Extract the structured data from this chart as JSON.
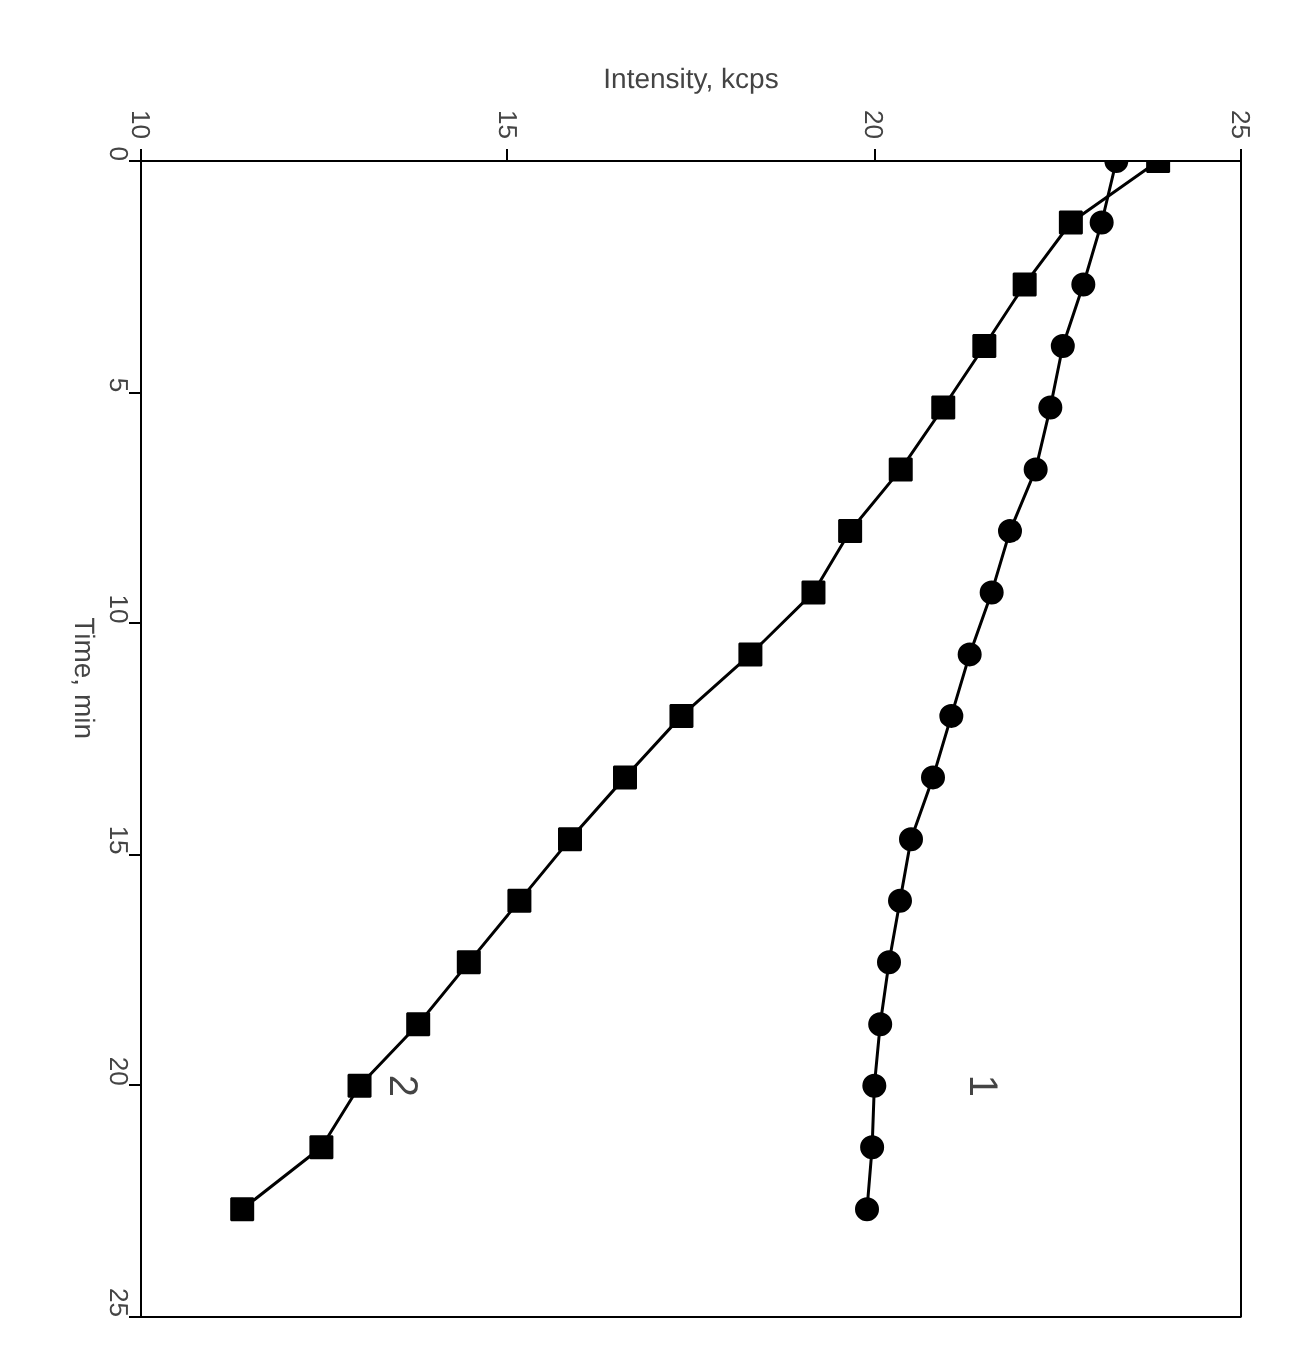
{
  "chart_data": {
    "type": "line",
    "xlabel": "Intensity, kcps",
    "ylabel": "Time, min",
    "xlim": [
      10,
      25
    ],
    "xticks": [
      10,
      15,
      20,
      25
    ],
    "ylim": [
      25,
      0
    ],
    "yticks": [
      0,
      5,
      10,
      15,
      20,
      25
    ],
    "grid": false,
    "line_style": "solid",
    "series": [
      {
        "name": "1",
        "marker": "circle",
        "color": "#000000",
        "x": [
          23.3,
          23.1,
          22.85,
          22.57,
          22.4,
          22.2,
          21.85,
          21.6,
          21.3,
          21.05,
          20.8,
          20.5,
          20.35,
          20.2,
          20.08,
          20.0,
          19.97,
          19.9
        ],
        "values": [
          0,
          1.33,
          2.67,
          4,
          5.33,
          6.67,
          8,
          9.33,
          10.67,
          12,
          13.33,
          14.67,
          16,
          17.33,
          18.67,
          20,
          21.33,
          22.67
        ]
      },
      {
        "name": "2",
        "marker": "square",
        "color": "#000000",
        "x": [
          23.87,
          22.68,
          22.05,
          21.5,
          20.94,
          20.36,
          19.67,
          19.17,
          18.31,
          17.37,
          16.6,
          15.85,
          15.16,
          14.47,
          13.78,
          12.98,
          12.46,
          11.38
        ],
        "values": [
          0,
          1.33,
          2.67,
          4,
          5.33,
          6.67,
          8,
          9.33,
          10.67,
          12,
          13.33,
          14.67,
          16,
          17.33,
          18.67,
          20,
          21.33,
          22.67
        ]
      }
    ]
  }
}
